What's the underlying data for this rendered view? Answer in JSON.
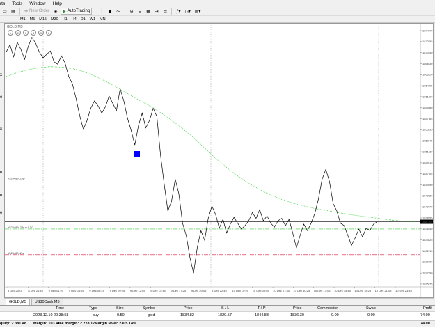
{
  "menu": {
    "items": [
      "rts",
      "Tools",
      "Window",
      "Help"
    ]
  },
  "toolbar": {
    "new_order_label": "New Order",
    "auto_trading_label": "AutoTrading"
  },
  "timeframes": [
    "M1",
    "M5",
    "M15",
    "M30",
    "H1",
    "H4",
    "D1",
    "W1",
    "MN"
  ],
  "left_edge_labels": [
    "x",
    "e",
    "x",
    "e",
    "e",
    "e"
  ],
  "chart": {
    "title": "GOLD,M5",
    "indicator_icons": [
      "1",
      "2",
      "3",
      "4",
      "5",
      "6"
    ],
    "current_price_label": "1836.30",
    "order_labels": {
      "tp": "#52448912 tp",
      "buy": "#52448912 buy 0.50",
      "sl": "#52448912 sl"
    },
    "colors": {
      "price_line": "#000000",
      "ma_line": "#32cd32",
      "order_line_red": "#dc143c",
      "order_line_green": "#32cd32",
      "marker": "#0000ff"
    }
  },
  "chart_data": {
    "type": "line",
    "title": "",
    "xlabel": "",
    "ylabel": "",
    "ylim": [
      1823.0,
      1876.5
    ],
    "y_ticks": [
      "1874.70",
      "1872.55",
      "1870.40",
      "1868.30",
      "1866.20",
      "1864.05",
      "1861.90",
      "1859.80",
      "1857.65",
      "1855.55",
      "1853.45",
      "1851.30",
      "1849.15",
      "1847.05",
      "1844.90",
      "1842.80",
      "1840.70",
      "1838.55",
      "1836.40",
      "1834.25",
      "1832.15",
      "1830.00",
      "1827.90",
      "1825.75"
    ],
    "x_ticks": [
      "8 Dec 2023",
      "8 Dec 21:45",
      "9 Dec 01:25",
      "9 Dec 04:05",
      "9 Dec 06:45",
      "9 Dec 09:25",
      "9 Dec 12:05",
      "9 Dec 14:45",
      "9 Dec 17:25",
      "9 Dec 20:05",
      "9 Dec 22:45",
      "10 Dec 02:25",
      "10 Dec 05:05",
      "10 Dec 07:45",
      "10 Dec 10:25",
      "10 Dec 13:05",
      "10 Dec 15:45",
      "10 Dec 18:25",
      "10 Dec 21:05",
      "10 Dec 23:45"
    ],
    "price_series": [
      1871.0,
      1872.5,
      1870.0,
      1873.0,
      1871.5,
      1869.5,
      1872.2,
      1874.0,
      1872.8,
      1871.0,
      1869.8,
      1870.5,
      1871.2,
      1869.0,
      1868.5,
      1870.2,
      1868.8,
      1866.0,
      1864.5,
      1861.5,
      1858.0,
      1855.2,
      1857.0,
      1859.5,
      1861.0,
      1860.0,
      1858.5,
      1859.8,
      1862.0,
      1860.5,
      1859.0,
      1863.5,
      1861.0,
      1857.5,
      1855.0,
      1852.0,
      1856.0,
      1858.5,
      1855.5,
      1857.0,
      1859.5,
      1857.8,
      1850.0,
      1844.0,
      1838.5,
      1840.5,
      1845.0,
      1842.0,
      1836.0,
      1833.5,
      1829.0,
      1825.8,
      1831.0,
      1834.5,
      1832.5,
      1837.0,
      1839.5,
      1837.8,
      1835.0,
      1836.8,
      1834.0,
      1835.8,
      1837.2,
      1836.0,
      1834.8,
      1835.5,
      1836.5,
      1838.2,
      1837.0,
      1838.8,
      1836.5,
      1837.5,
      1836.0,
      1835.2,
      1836.5,
      1837.0,
      1835.5,
      1836.8,
      1834.0,
      1831.0,
      1833.5,
      1835.8,
      1834.5,
      1836.0,
      1838.0,
      1841.0,
      1845.0,
      1847.0,
      1844.5,
      1840.0,
      1838.5,
      1836.0,
      1835.5,
      1833.5,
      1831.5,
      1833.0,
      1834.8,
      1833.2,
      1835.0,
      1834.5,
      1835.8,
      1836.3
    ],
    "ma_series": [
      1866.0,
      1866.8,
      1867.4,
      1867.8,
      1868.0,
      1867.9,
      1867.6,
      1867.0,
      1866.1,
      1865.0,
      1863.8,
      1862.5,
      1861.2,
      1860.0,
      1858.6,
      1857.0,
      1855.3,
      1853.4,
      1851.3,
      1849.2,
      1847.3,
      1845.6,
      1844.1,
      1842.8,
      1841.7,
      1840.8,
      1840.1,
      1839.5,
      1839.0,
      1838.6,
      1838.2,
      1837.8,
      1837.5,
      1837.2,
      1836.9,
      1836.6,
      1836.4,
      1836.3
    ]
  },
  "order_levels": {
    "tp": 1844.83,
    "open": 1834.82,
    "current": 1836.3,
    "sl": 1829.57
  },
  "bottom_tabs": [
    "GOLD,M5",
    "US30Cash,M5"
  ],
  "trade_panel": {
    "headers": [
      "Time",
      "Type",
      "Size",
      "Symbol",
      "Price",
      "S / L",
      "T / P",
      "Price",
      "Commission",
      "Swap",
      "Profit"
    ],
    "row": [
      "2023.12.10 20:38:58",
      "buy",
      "0.50",
      "gold",
      "1834.82",
      "1829.57",
      "1844.83",
      "1836.30",
      "0.00",
      "0.00",
      "74.00"
    ],
    "status": {
      "equity": "quity: 2 381.48",
      "margin": "Margin: 103.31",
      "free_margin": "Free margin: 2 278.17",
      "margin_level": "Margin level: 2305.14%",
      "total_profit": "74.00"
    }
  }
}
